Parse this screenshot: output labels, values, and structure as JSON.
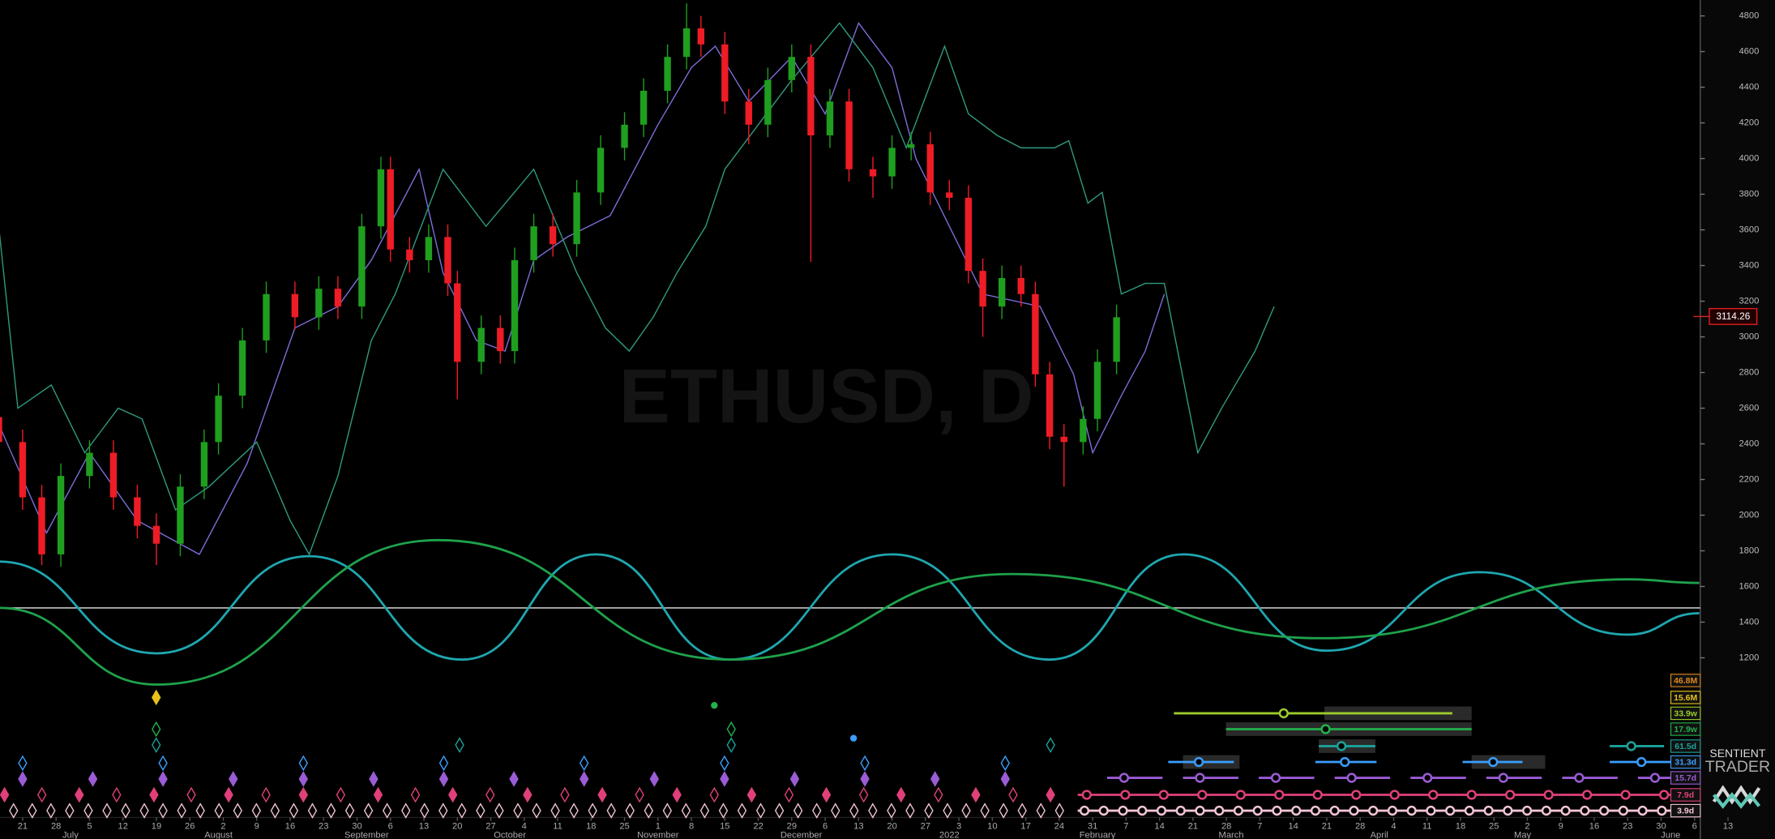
{
  "chart_data": {
    "type": "candlestick",
    "watermark": "ETHUSD, D",
    "last_price": 3114.26,
    "ylim": [
      184,
      4889
    ],
    "yticks": [
      1200,
      1400,
      1600,
      1800,
      2000,
      2200,
      2400,
      2600,
      2800,
      3000,
      3200,
      3400,
      3600,
      3800,
      4000,
      4200,
      4400,
      4600,
      4800
    ],
    "xlim": [
      -4.74,
      351.2
    ],
    "xticks": [
      {
        "value": 0,
        "label": "21"
      },
      {
        "value": 7,
        "label": "28"
      },
      {
        "value": 14,
        "label": "5"
      },
      {
        "value": 21,
        "label": "12"
      },
      {
        "value": 28,
        "label": "19"
      },
      {
        "value": 35,
        "label": "26"
      },
      {
        "value": 42,
        "label": "2"
      },
      {
        "value": 49,
        "label": "9"
      },
      {
        "value": 56,
        "label": "16"
      },
      {
        "value": 63,
        "label": "23"
      },
      {
        "value": 70,
        "label": "30"
      },
      {
        "value": 77,
        "label": "6"
      },
      {
        "value": 84,
        "label": "13"
      },
      {
        "value": 91,
        "label": "20"
      },
      {
        "value": 98,
        "label": "27"
      },
      {
        "value": 105,
        "label": "4"
      },
      {
        "value": 112,
        "label": "11"
      },
      {
        "value": 119,
        "label": "18"
      },
      {
        "value": 126,
        "label": "25"
      },
      {
        "value": 133,
        "label": "1"
      },
      {
        "value": 140,
        "label": "8"
      },
      {
        "value": 147,
        "label": "15"
      },
      {
        "value": 154,
        "label": "22"
      },
      {
        "value": 161,
        "label": "29"
      },
      {
        "value": 168,
        "label": "6"
      },
      {
        "value": 175,
        "label": "13"
      },
      {
        "value": 182,
        "label": "20"
      },
      {
        "value": 189,
        "label": "27"
      },
      {
        "value": 196,
        "label": "3"
      },
      {
        "value": 203,
        "label": "10"
      },
      {
        "value": 210,
        "label": "17"
      },
      {
        "value": 217,
        "label": "24"
      },
      {
        "value": 224,
        "label": "31"
      },
      {
        "value": 231,
        "label": "7"
      },
      {
        "value": 238,
        "label": "14"
      },
      {
        "value": 245,
        "label": "21"
      },
      {
        "value": 252,
        "label": "28"
      },
      {
        "value": 259,
        "label": "7"
      },
      {
        "value": 266,
        "label": "14"
      },
      {
        "value": 273,
        "label": "21"
      },
      {
        "value": 280,
        "label": "28"
      },
      {
        "value": 287,
        "label": "4"
      },
      {
        "value": 294,
        "label": "11"
      },
      {
        "value": 301,
        "label": "18"
      },
      {
        "value": 308,
        "label": "25"
      },
      {
        "value": 315,
        "label": "2"
      },
      {
        "value": 322,
        "label": "9"
      },
      {
        "value": 329,
        "label": "16"
      },
      {
        "value": 336,
        "label": "23"
      },
      {
        "value": 343,
        "label": "30"
      },
      {
        "value": 350,
        "label": "6"
      },
      {
        "value": 357,
        "label": "13"
      }
    ],
    "month_labels": [
      {
        "value": 10,
        "label": "July"
      },
      {
        "value": 41,
        "label": "August"
      },
      {
        "value": 72,
        "label": "September"
      },
      {
        "value": 102,
        "label": "October"
      },
      {
        "value": 133,
        "label": "November"
      },
      {
        "value": 163,
        "label": "December"
      },
      {
        "value": 194,
        "label": "2022"
      },
      {
        "value": 225,
        "label": "February"
      },
      {
        "value": 253,
        "label": "March"
      },
      {
        "value": 284,
        "label": "April"
      },
      {
        "value": 314,
        "label": "May"
      },
      {
        "value": 345,
        "label": "June"
      }
    ],
    "candles": {
      "up_color": "#1f9e1f",
      "down_color": "#ee1c25",
      "x": [
        -5,
        0,
        4,
        8,
        14,
        19,
        24,
        28,
        33,
        38,
        41,
        46,
        51,
        57,
        62,
        66,
        71,
        75,
        77,
        81,
        85,
        89,
        91,
        96,
        100,
        103,
        107,
        111,
        116,
        121,
        126,
        130,
        135,
        139,
        142,
        147,
        152,
        156,
        161,
        165,
        169,
        173,
        178,
        182,
        186,
        190,
        194,
        198,
        201,
        205,
        209,
        212,
        215,
        218,
        222,
        225,
        229
      ],
      "open": [
        2550,
        2410,
        2100,
        1780,
        2220,
        2350,
        2100,
        1940,
        1840,
        2160,
        2410,
        2670,
        2980,
        3240,
        3110,
        3270,
        3170,
        3620,
        3940,
        3490,
        3430,
        3560,
        3300,
        2860,
        3050,
        2920,
        3430,
        3620,
        3520,
        3810,
        4060,
        4190,
        4380,
        4570,
        4730,
        4640,
        4320,
        4190,
        4440,
        4570,
        4130,
        4320,
        3940,
        3900,
        4060,
        4080,
        3810,
        3780,
        3370,
        3170,
        3330,
        3240,
        2790,
        2440,
        2410,
        2540,
        2860
      ],
      "high": [
        2620,
        2480,
        2170,
        2290,
        2420,
        2420,
        2170,
        2010,
        2230,
        2480,
        2740,
        3050,
        3310,
        3310,
        3340,
        3340,
        3690,
        4010,
        4010,
        3560,
        3630,
        3630,
        3370,
        3120,
        3120,
        3500,
        3690,
        3690,
        3880,
        4130,
        4260,
        4450,
        4640,
        4870,
        4800,
        4710,
        4390,
        4510,
        4640,
        4640,
        4390,
        4390,
        4010,
        4130,
        4150,
        4150,
        3880,
        3850,
        3440,
        3400,
        3400,
        3310,
        2860,
        2510,
        2610,
        2930,
        3180
      ],
      "low": [
        2340,
        2030,
        1720,
        1710,
        2150,
        2030,
        1870,
        1720,
        1770,
        2090,
        2340,
        2600,
        2910,
        3040,
        3040,
        3100,
        3100,
        3550,
        3420,
        3360,
        3360,
        3230,
        2650,
        2790,
        2850,
        2850,
        3360,
        3450,
        3450,
        3740,
        3990,
        4120,
        4310,
        4500,
        4570,
        4250,
        4080,
        4120,
        4370,
        3420,
        4060,
        3870,
        3780,
        3830,
        3990,
        3740,
        3710,
        3300,
        3000,
        3100,
        3170,
        2720,
        2370,
        2160,
        2340,
        2470,
        2790
      ],
      "close": [
        2410,
        2100,
        1780,
        2220,
        2350,
        2100,
        1940,
        1840,
        2160,
        2410,
        2670,
        2980,
        3240,
        3110,
        3270,
        3170,
        3620,
        3940,
        3490,
        3430,
        3560,
        3300,
        2860,
        3050,
        2920,
        3430,
        3620,
        3520,
        3810,
        4060,
        4190,
        4380,
        4570,
        4730,
        4640,
        4320,
        4190,
        4440,
        4570,
        4130,
        4320,
        3940,
        3900,
        4060,
        4080,
        3810,
        3780,
        3370,
        3170,
        3330,
        3240,
        2790,
        2440,
        2410,
        2540,
        2860,
        3110
      ]
    },
    "lines": [
      {
        "color": "#7a6fd8",
        "x": [
          -5,
          5,
          14,
          24,
          37,
          47,
          57,
          66,
          73,
          83,
          88,
          95,
          101,
          107,
          114,
          123,
          133,
          140,
          145,
          152,
          161,
          168,
          175,
          182,
          187,
          194,
          201,
          213,
          220,
          224,
          230,
          235,
          239
        ],
        "y": [
          2510,
          1900,
          2350,
          1970,
          1780,
          2290,
          3050,
          3170,
          3430,
          3940,
          3360,
          2980,
          2920,
          3430,
          3560,
          3680,
          4190,
          4510,
          4630,
          4320,
          4570,
          4250,
          4760,
          4510,
          4000,
          3620,
          3240,
          3170,
          2790,
          2350,
          2670,
          2920,
          3240
        ]
      },
      {
        "color": "#2f9a80",
        "x": [
          -5,
          -1,
          6,
          13,
          20,
          25,
          32,
          39,
          49,
          56,
          60,
          66,
          73,
          78,
          88,
          97,
          107,
          116,
          122,
          127,
          132,
          137,
          143,
          147,
          154,
          161,
          171,
          178,
          185,
          193,
          198,
          204,
          209,
          216,
          219,
          223,
          226,
          230,
          235,
          239,
          246,
          251,
          258,
          262
        ],
        "y": [
          3620,
          2600,
          2730,
          2350,
          2600,
          2540,
          2030,
          2160,
          2410,
          1970,
          1780,
          2220,
          2980,
          3240,
          3940,
          3620,
          3940,
          3360,
          3050,
          2920,
          3110,
          3360,
          3620,
          3940,
          4190,
          4440,
          4760,
          4510,
          4060,
          4630,
          4250,
          4130,
          4060,
          4060,
          4100,
          3750,
          3810,
          3240,
          3300,
          3300,
          2350,
          2600,
          2920,
          3170
        ]
      }
    ],
    "cycles": [
      {
        "color": "#1fa7b0",
        "x": [
          -5,
          28,
          60,
          92,
          120,
          148,
          182,
          215,
          243,
          273,
          305,
          336,
          351
        ],
        "y": [
          1740,
          1225,
          1770,
          1190,
          1780,
          1190,
          1780,
          1190,
          1780,
          1240,
          1680,
          1330,
          1450
        ]
      },
      {
        "color": "#1fa24c",
        "x": [
          -5,
          28,
          87,
          148,
          207,
          272,
          336,
          351
        ],
        "y": [
          1480,
          1050,
          1860,
          1190,
          1670,
          1310,
          1640,
          1620
        ]
      }
    ],
    "hline": 1480,
    "cycle_periods": [
      {
        "label": "46.8M",
        "color": "#e0891e"
      },
      {
        "label": "15.6M",
        "color": "#e8c21a"
      },
      {
        "label": "33.9w",
        "color": "#9ccc2c"
      },
      {
        "label": "17.9w",
        "color": "#22b14c"
      },
      {
        "label": "61.5d",
        "color": "#1aa39a"
      },
      {
        "label": "31.3d",
        "color": "#3a9fff"
      },
      {
        "label": "15.7d",
        "color": "#9b5cd6"
      },
      {
        "label": "7.9d",
        "color": "#e0407a"
      },
      {
        "label": "3.9d",
        "color": "#f2c4d6"
      }
    ],
    "brand": [
      "SENTIENT",
      "TRADER"
    ]
  }
}
